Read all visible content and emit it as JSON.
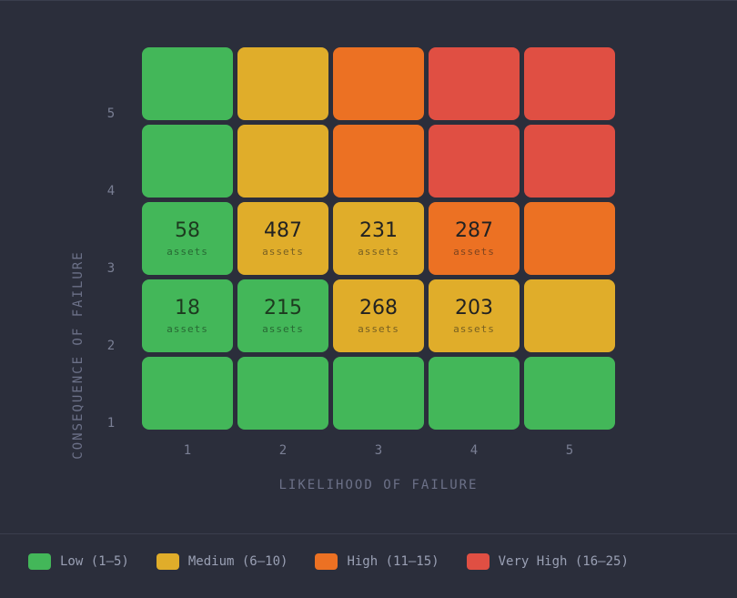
{
  "chart_data": {
    "type": "heatmap",
    "title": "",
    "xlabel": "LIKELIHOOD OF FAILURE",
    "ylabel": "CONSEQUENCE OF FAILURE",
    "x_ticks": [
      "1",
      "2",
      "3",
      "4",
      "5"
    ],
    "y_ticks": [
      "1",
      "2",
      "3",
      "4",
      "5"
    ],
    "cell_unit": "assets",
    "rows": [
      {
        "consequence": 5,
        "cells": [
          {
            "likelihood": 1,
            "level": "low",
            "count": null
          },
          {
            "likelihood": 2,
            "level": "medium",
            "count": null
          },
          {
            "likelihood": 3,
            "level": "high",
            "count": null
          },
          {
            "likelihood": 4,
            "level": "very_high",
            "count": null
          },
          {
            "likelihood": 5,
            "level": "very_high",
            "count": null
          }
        ]
      },
      {
        "consequence": 4,
        "cells": [
          {
            "likelihood": 1,
            "level": "low",
            "count": null
          },
          {
            "likelihood": 2,
            "level": "medium",
            "count": null
          },
          {
            "likelihood": 3,
            "level": "high",
            "count": null
          },
          {
            "likelihood": 4,
            "level": "very_high",
            "count": null
          },
          {
            "likelihood": 5,
            "level": "very_high",
            "count": null
          }
        ]
      },
      {
        "consequence": 3,
        "cells": [
          {
            "likelihood": 1,
            "level": "low",
            "count": 58
          },
          {
            "likelihood": 2,
            "level": "medium",
            "count": 487
          },
          {
            "likelihood": 3,
            "level": "medium",
            "count": 231
          },
          {
            "likelihood": 4,
            "level": "high",
            "count": 287
          },
          {
            "likelihood": 5,
            "level": "high",
            "count": null
          }
        ]
      },
      {
        "consequence": 2,
        "cells": [
          {
            "likelihood": 1,
            "level": "low",
            "count": 18
          },
          {
            "likelihood": 2,
            "level": "low",
            "count": 215
          },
          {
            "likelihood": 3,
            "level": "medium",
            "count": 268
          },
          {
            "likelihood": 4,
            "level": "medium",
            "count": 203
          },
          {
            "likelihood": 5,
            "level": "medium",
            "count": null
          }
        ]
      },
      {
        "consequence": 1,
        "cells": [
          {
            "likelihood": 1,
            "level": "low",
            "count": null
          },
          {
            "likelihood": 2,
            "level": "low",
            "count": null
          },
          {
            "likelihood": 3,
            "level": "low",
            "count": null
          },
          {
            "likelihood": 4,
            "level": "low",
            "count": null
          },
          {
            "likelihood": 5,
            "level": "low",
            "count": null
          }
        ]
      }
    ],
    "legend_position": "bottom",
    "legend": [
      {
        "key": "low",
        "label": "Low (1–5)",
        "color": "#43b759"
      },
      {
        "key": "medium",
        "label": "Medium (6–10)",
        "color": "#e0ad2a"
      },
      {
        "key": "high",
        "label": "High (11–15)",
        "color": "#ec7123"
      },
      {
        "key": "very_high",
        "label": "Very High (16–25)",
        "color": "#e04f43"
      }
    ]
  }
}
